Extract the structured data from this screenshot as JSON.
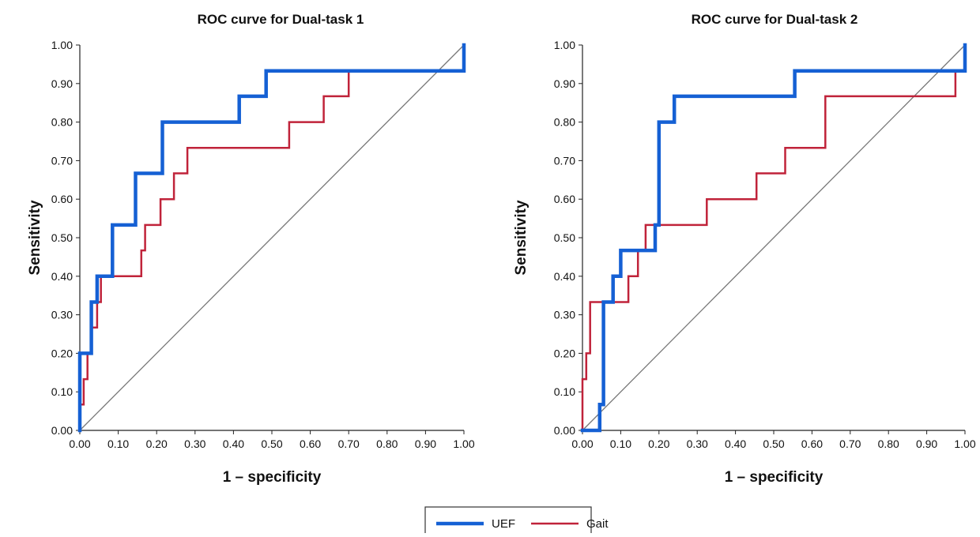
{
  "chart_data": [
    {
      "type": "line",
      "title": "ROC curve for Dual-task 1",
      "xlabel": "1 – specificity",
      "ylabel": "Sensitivity",
      "xlim": [
        0,
        1
      ],
      "ylim": [
        0,
        1
      ],
      "xticks": [
        "0.00",
        "0.10",
        "0.20",
        "0.30",
        "0.40",
        "0.50",
        "0.60",
        "0.70",
        "0.80",
        "0.90",
        "1.00"
      ],
      "yticks": [
        "0.00",
        "0.10",
        "0.20",
        "0.30",
        "0.40",
        "0.50",
        "0.60",
        "0.70",
        "0.80",
        "0.90",
        "1.00"
      ],
      "grid": false,
      "reference_line": {
        "x": [
          0,
          1
        ],
        "y": [
          0,
          1
        ],
        "color": "#777777"
      },
      "series": [
        {
          "name": "UEF",
          "color": "#1560d4",
          "x": [
            0.0,
            0.0,
            0.0,
            0.0,
            0.03,
            0.03,
            0.03,
            0.03,
            0.045,
            0.045,
            0.045,
            0.085,
            0.085,
            0.145,
            0.145,
            0.215,
            0.215,
            0.415,
            0.415,
            0.485,
            0.485,
            1.0,
            1.0
          ],
          "y": [
            0.0,
            0.1,
            0.2,
            0.2,
            0.2,
            0.267,
            0.333,
            0.333,
            0.333,
            0.4,
            0.4,
            0.4,
            0.533,
            0.533,
            0.667,
            0.667,
            0.8,
            0.8,
            0.867,
            0.867,
            0.933,
            0.933,
            1.0
          ]
        },
        {
          "name": "Gait",
          "color": "#c0233a",
          "x": [
            0.0,
            0.0,
            0.01,
            0.01,
            0.02,
            0.02,
            0.03,
            0.03,
            0.045,
            0.045,
            0.055,
            0.055,
            0.16,
            0.16,
            0.17,
            0.17,
            0.21,
            0.21,
            0.245,
            0.245,
            0.28,
            0.28,
            0.545,
            0.545,
            0.635,
            0.635,
            0.7,
            0.7,
            1.0,
            1.0
          ],
          "y": [
            0.0,
            0.067,
            0.067,
            0.133,
            0.133,
            0.2,
            0.2,
            0.267,
            0.267,
            0.333,
            0.333,
            0.4,
            0.4,
            0.467,
            0.467,
            0.533,
            0.533,
            0.6,
            0.6,
            0.667,
            0.667,
            0.733,
            0.733,
            0.8,
            0.8,
            0.867,
            0.867,
            0.933,
            0.933,
            1.0
          ]
        }
      ]
    },
    {
      "type": "line",
      "title": "ROC curve for Dual-task 2",
      "xlabel": "1 – specificity",
      "ylabel": "Sensitivity",
      "xlim": [
        0,
        1
      ],
      "ylim": [
        0,
        1
      ],
      "xticks": [
        "0.00",
        "0.10",
        "0.20",
        "0.30",
        "0.40",
        "0.50",
        "0.60",
        "0.70",
        "0.80",
        "0.90",
        "1.00"
      ],
      "yticks": [
        "0.00",
        "0.10",
        "0.20",
        "0.30",
        "0.40",
        "0.50",
        "0.60",
        "0.70",
        "0.80",
        "0.90",
        "1.00"
      ],
      "grid": false,
      "reference_line": {
        "x": [
          0,
          1
        ],
        "y": [
          0,
          1
        ],
        "color": "#777777"
      },
      "series": [
        {
          "name": "UEF",
          "color": "#1560d4",
          "x": [
            0.0,
            0.045,
            0.045,
            0.055,
            0.055,
            0.08,
            0.08,
            0.09,
            0.09,
            0.1,
            0.1,
            0.17,
            0.17,
            0.19,
            0.19,
            0.2,
            0.2,
            0.24,
            0.24,
            0.555,
            0.555,
            1.0,
            1.0
          ],
          "y": [
            0.0,
            0.0,
            0.067,
            0.067,
            0.333,
            0.333,
            0.4,
            0.4,
            0.4,
            0.4,
            0.467,
            0.467,
            0.467,
            0.467,
            0.533,
            0.533,
            0.8,
            0.8,
            0.867,
            0.867,
            0.933,
            0.933,
            1.0
          ]
        },
        {
          "name": "Gait",
          "color": "#c0233a",
          "x": [
            0.0,
            0.0,
            0.01,
            0.01,
            0.02,
            0.02,
            0.12,
            0.12,
            0.145,
            0.145,
            0.165,
            0.165,
            0.325,
            0.325,
            0.455,
            0.455,
            0.53,
            0.53,
            0.635,
            0.635,
            0.975,
            0.975,
            1.0,
            1.0
          ],
          "y": [
            0.0,
            0.133,
            0.133,
            0.2,
            0.2,
            0.333,
            0.333,
            0.4,
            0.4,
            0.467,
            0.467,
            0.533,
            0.533,
            0.6,
            0.6,
            0.667,
            0.667,
            0.733,
            0.733,
            0.867,
            0.867,
            0.933,
            0.933,
            1.0
          ]
        }
      ]
    }
  ],
  "legend": {
    "placement": "bottom-center",
    "items": [
      {
        "label": "UEF",
        "color": "#1560d4"
      },
      {
        "label": "Gait",
        "color": "#c0233a"
      }
    ]
  }
}
